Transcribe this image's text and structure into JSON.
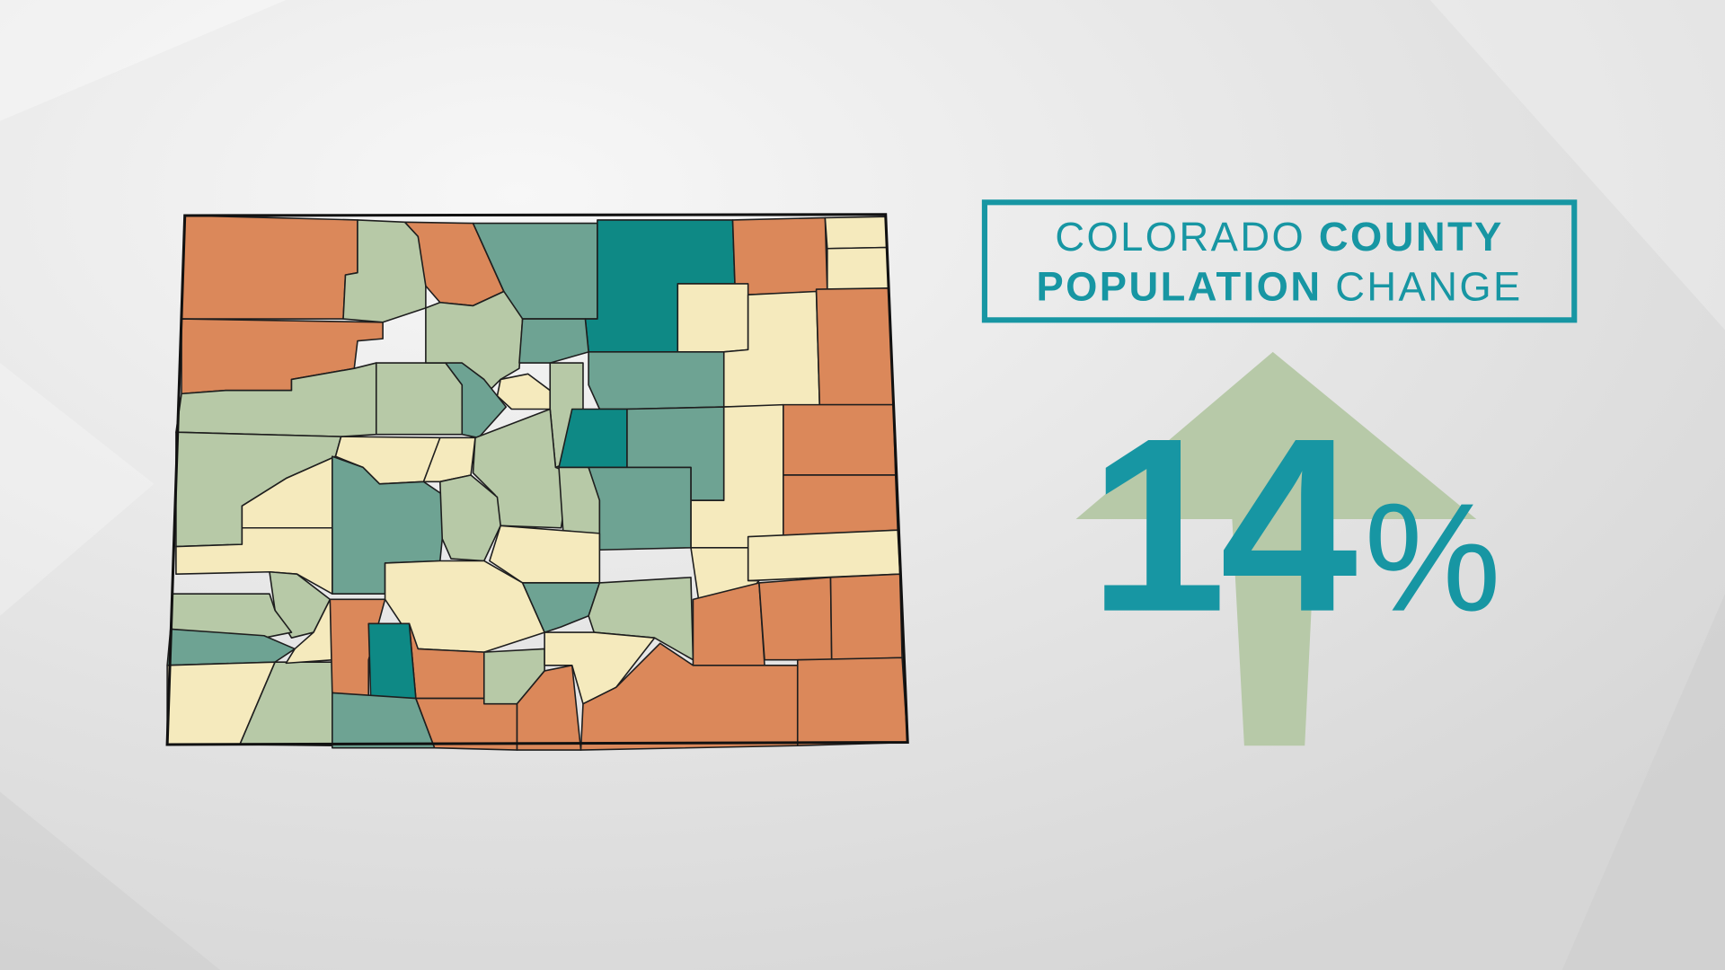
{
  "title": {
    "parts": [
      {
        "text": "COLORADO",
        "bold": false
      },
      {
        "text": "COUNTY",
        "bold": true
      },
      {
        "text": "POPULATION",
        "bold": true
      },
      {
        "text": "CHANGE",
        "bold": false
      }
    ]
  },
  "stat": {
    "number": "14",
    "unit": "%"
  }
}
